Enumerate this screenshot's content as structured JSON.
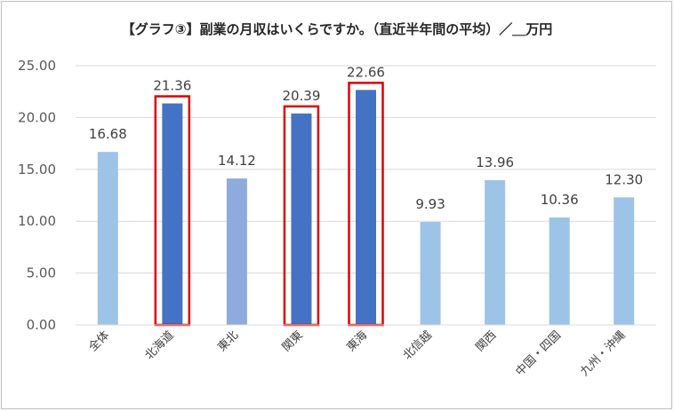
{
  "chart_data": {
    "type": "bar",
    "title": "【グラフ③】副業の月収はいくらですか。（直近半年間の平均）／＿万円",
    "xlabel": "",
    "ylabel": "",
    "categories": [
      "全体",
      "北海道",
      "東北",
      "関東",
      "東海",
      "北信越",
      "関西",
      "中国・四国",
      "九州・沖縄"
    ],
    "values": [
      16.68,
      21.36,
      14.12,
      20.39,
      22.66,
      9.93,
      13.96,
      10.36,
      12.3
    ],
    "value_labels": [
      "16.68",
      "21.36",
      "14.12",
      "20.39",
      "22.66",
      "9.93",
      "13.96",
      "10.36",
      "12.30"
    ],
    "ylim": [
      0,
      25
    ],
    "y_ticks": [
      "0.00",
      "5.00",
      "10.00",
      "15.00",
      "20.00",
      "25.00"
    ],
    "y_tick_values": [
      0,
      5,
      10,
      15,
      20,
      25
    ],
    "grid": true,
    "legend": "none",
    "highlighted_categories": [
      "北海道",
      "関東",
      "東海"
    ],
    "colors": {
      "bar_light": "#9dc3e6",
      "bar_dark": "#4472c4",
      "bar_mid": "#8faadc",
      "highlight_box": "#e00000",
      "grid": "#d9d9d9"
    },
    "bar_color_keys": [
      "bar_light",
      "bar_dark",
      "bar_mid",
      "bar_dark",
      "bar_dark",
      "bar_light",
      "bar_light",
      "bar_light",
      "bar_light"
    ]
  }
}
